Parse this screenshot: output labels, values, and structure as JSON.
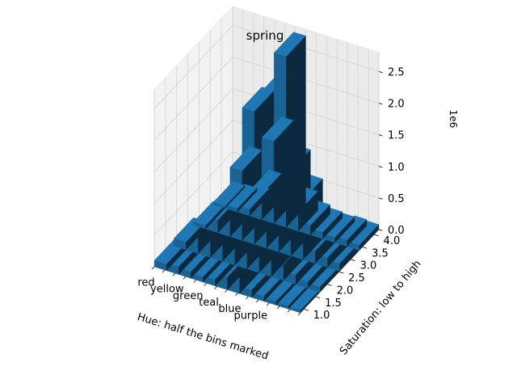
{
  "chart_data": {
    "type": "bar3d",
    "title": "spring",
    "xlabel": "Hue: half the bins marked",
    "ylabel": "Saturation: low to high",
    "zlabel": "",
    "z_offset_text": "1e6",
    "x_tick_labels": [
      "red",
      "yellow",
      "green",
      "teal",
      "blue",
      "purple"
    ],
    "y_tick_labels": [
      "1.0",
      "1.5",
      "2.0",
      "2.5",
      "3.0",
      "3.5",
      "4.0"
    ],
    "z_tick_labels": [
      "0.0",
      "0.5",
      "1.0",
      "1.5",
      "2.0",
      "2.5"
    ],
    "zlim": [
      0,
      2.8
    ],
    "grid": true,
    "bar_color": "#1f77b4",
    "hue_bins": 12,
    "saturation_bins": [
      1,
      2,
      3,
      4
    ],
    "series": [
      {
        "saturation": 1,
        "values": [
          0.1,
          0.12,
          0.1,
          0.08,
          0.1,
          0.2,
          0.35,
          0.12,
          0.08,
          0.06,
          0.05,
          0.04
        ]
      },
      {
        "saturation": 2,
        "values": [
          0.12,
          0.3,
          0.45,
          0.3,
          0.9,
          0.5,
          2.0,
          0.7,
          0.25,
          0.15,
          0.1,
          0.08
        ]
      },
      {
        "saturation": 3,
        "values": [
          0.05,
          0.2,
          0.45,
          1.1,
          2.1,
          2.3,
          0.55,
          1.35,
          0.95,
          0.2,
          0.15,
          0.12
        ]
      },
      {
        "saturation": 4,
        "values": [
          0.03,
          0.05,
          0.1,
          0.4,
          1.3,
          2.7,
          0.3,
          0.15,
          0.1,
          0.08,
          0.1,
          0.08
        ]
      }
    ]
  }
}
